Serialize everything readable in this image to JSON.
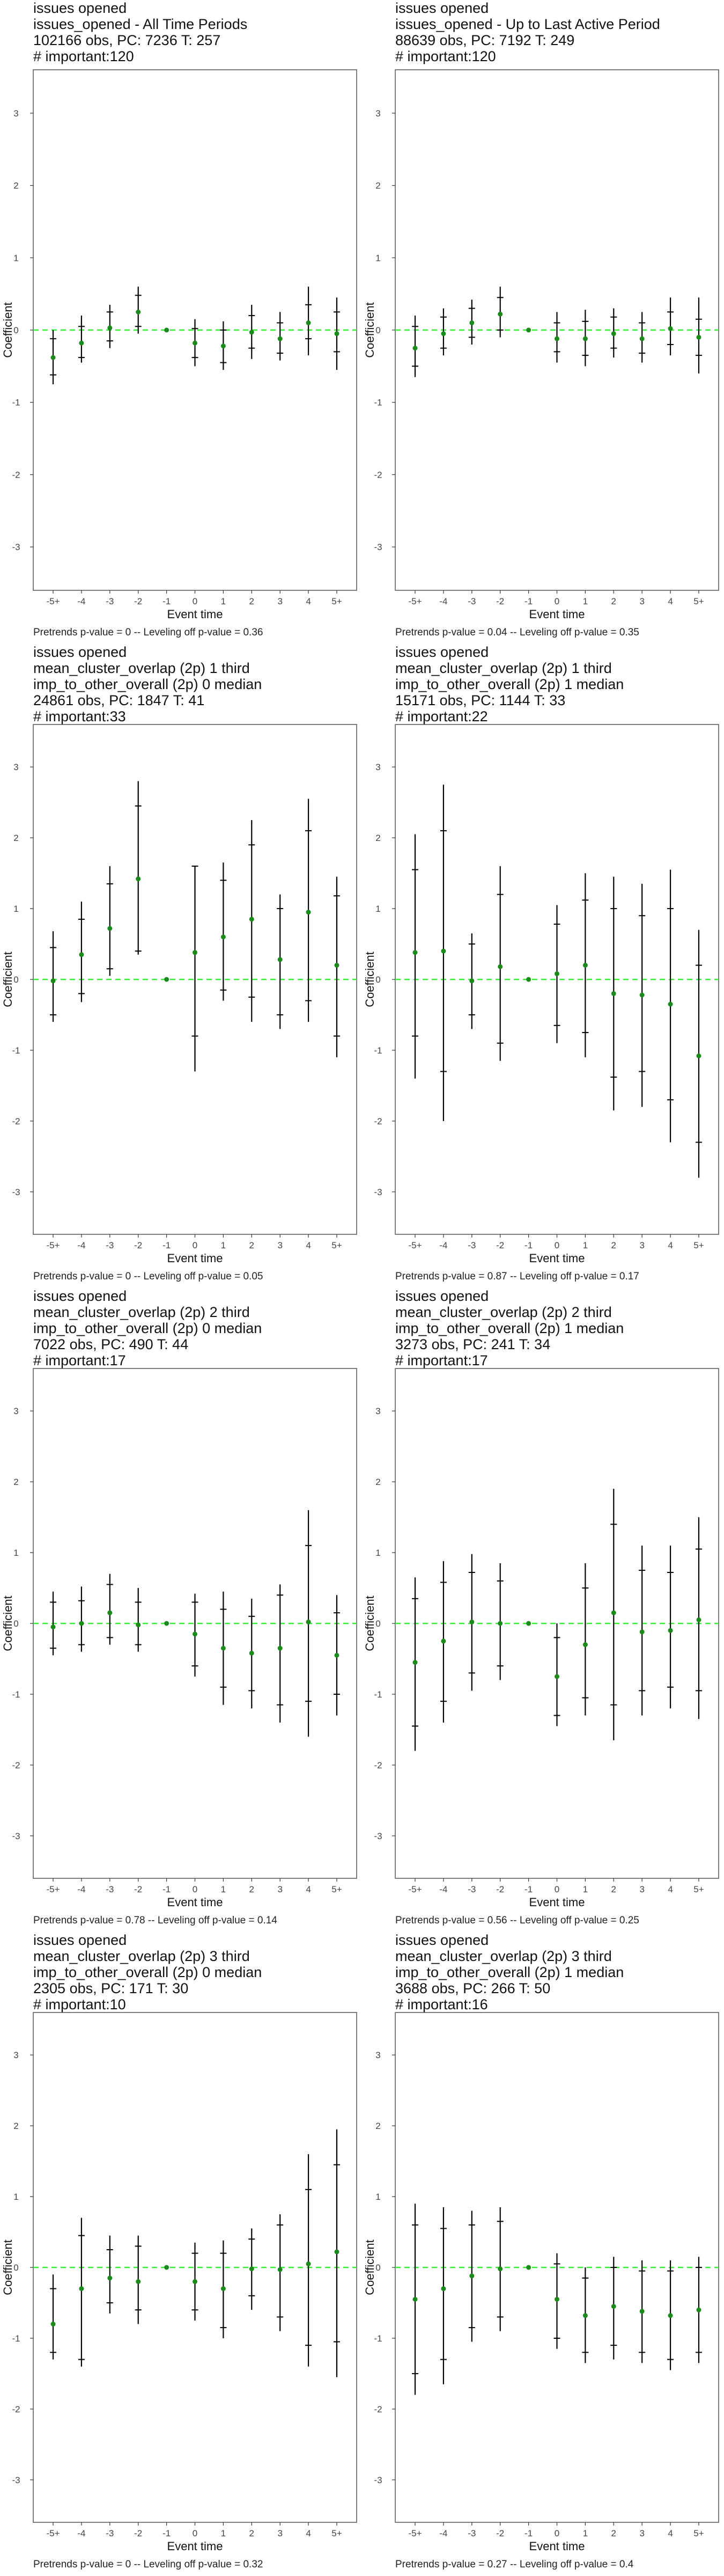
{
  "axis_text": {
    "ylabel": "Coefficient",
    "xlabel": "Event time"
  },
  "colors": {
    "point": "#1a8a1a",
    "refline": "#33ee33",
    "errorbar": "#000000",
    "frame": "#555555"
  },
  "chart_data": [
    {
      "type": "errorbar",
      "title_lines": [
        "issues opened",
        "issues_opened - All Time Periods",
        "102166 obs, PC: 7236 T: 257",
        "# important:120"
      ],
      "footer": "Pretrends p-value = 0 -- Leveling off p-value = 0.36",
      "xlabel": "Event time",
      "ylabel": "Coefficient",
      "categories": [
        "-5+",
        "-4",
        "-3",
        "-2",
        "-1",
        "0",
        "1",
        "2",
        "3",
        "4",
        "5+"
      ],
      "ylim": [
        -3.6,
        3.6
      ],
      "yticks": [
        -3,
        -2,
        -1,
        0,
        1,
        2,
        3
      ],
      "estimates": [
        -0.38,
        -0.18,
        0.03,
        0.25,
        0,
        -0.18,
        -0.22,
        -0.03,
        -0.12,
        0.1,
        -0.05
      ],
      "ci90": [
        [
          -0.62,
          -0.12
        ],
        [
          -0.38,
          0.05
        ],
        [
          -0.15,
          0.25
        ],
        [
          0.05,
          0.48
        ],
        null,
        [
          -0.38,
          0.02
        ],
        [
          -0.45,
          0.0
        ],
        [
          -0.25,
          0.2
        ],
        [
          -0.32,
          0.1
        ],
        [
          -0.12,
          0.35
        ],
        [
          -0.3,
          0.25
        ]
      ],
      "ci95": [
        [
          -0.75,
          0.0
        ],
        [
          -0.45,
          0.2
        ],
        [
          -0.25,
          0.35
        ],
        [
          -0.05,
          0.6
        ],
        null,
        [
          -0.5,
          0.15
        ],
        [
          -0.55,
          0.12
        ],
        [
          -0.4,
          0.35
        ],
        [
          -0.42,
          0.25
        ],
        [
          -0.35,
          0.6
        ],
        [
          -0.55,
          0.45
        ]
      ]
    },
    {
      "type": "errorbar",
      "title_lines": [
        "issues opened",
        "issues_opened - Up to Last Active Period",
        "88639 obs, PC: 7192 T: 249",
        "# important:120"
      ],
      "footer": "Pretrends p-value = 0.04 -- Leveling off p-value = 0.35",
      "xlabel": "Event time",
      "ylabel": "Coefficient",
      "categories": [
        "-5+",
        "-4",
        "-3",
        "-2",
        "-1",
        "0",
        "1",
        "2",
        "3",
        "4",
        "5+"
      ],
      "ylim": [
        -3.6,
        3.6
      ],
      "yticks": [
        -3,
        -2,
        -1,
        0,
        1,
        2,
        3
      ],
      "estimates": [
        -0.25,
        -0.05,
        0.1,
        0.22,
        0,
        -0.12,
        -0.12,
        -0.05,
        -0.12,
        0.02,
        -0.1
      ],
      "ci90": [
        [
          -0.5,
          0.05
        ],
        [
          -0.25,
          0.18
        ],
        [
          -0.1,
          0.3
        ],
        [
          0.0,
          0.45
        ],
        null,
        [
          -0.3,
          0.1
        ],
        [
          -0.35,
          0.12
        ],
        [
          -0.25,
          0.18
        ],
        [
          -0.32,
          0.1
        ],
        [
          -0.2,
          0.25
        ],
        [
          -0.35,
          0.15
        ]
      ],
      "ci95": [
        [
          -0.65,
          0.2
        ],
        [
          -0.35,
          0.3
        ],
        [
          -0.2,
          0.42
        ],
        [
          -0.1,
          0.6
        ],
        null,
        [
          -0.45,
          0.25
        ],
        [
          -0.5,
          0.28
        ],
        [
          -0.38,
          0.3
        ],
        [
          -0.45,
          0.25
        ],
        [
          -0.35,
          0.45
        ],
        [
          -0.6,
          0.45
        ]
      ]
    },
    {
      "type": "errorbar",
      "title_lines": [
        "issues opened",
        "mean_cluster_overlap (2p) 1 third",
        "imp_to_other_overall (2p) 0 median",
        "24861 obs, PC: 1847 T: 41",
        "# important:33"
      ],
      "footer": "Pretrends p-value = 0 -- Leveling off p-value = 0.05",
      "xlabel": "Event time",
      "ylabel": "Coefficient",
      "categories": [
        "-5+",
        "-4",
        "-3",
        "-2",
        "-1",
        "0",
        "1",
        "2",
        "3",
        "4",
        "5+"
      ],
      "ylim": [
        -3.6,
        3.6
      ],
      "yticks": [
        -3,
        -2,
        -1,
        0,
        1,
        2,
        3
      ],
      "estimates": [
        -0.02,
        0.35,
        0.72,
        1.42,
        0,
        0.38,
        0.6,
        0.85,
        0.28,
        0.95,
        0.2
      ],
      "ci90": [
        [
          -0.5,
          0.45
        ],
        [
          -0.2,
          0.85
        ],
        [
          0.15,
          1.35
        ],
        [
          0.4,
          2.45
        ],
        null,
        [
          -0.8,
          1.6
        ],
        [
          -0.15,
          1.4
        ],
        [
          -0.25,
          1.9
        ],
        [
          -0.5,
          1.0
        ],
        [
          -0.3,
          2.1
        ],
        [
          -0.8,
          1.18
        ]
      ],
      "ci95": [
        [
          -0.6,
          0.68
        ],
        [
          -0.32,
          1.1
        ],
        [
          0.05,
          1.6
        ],
        [
          0.35,
          2.8
        ],
        null,
        [
          -1.3,
          1.6
        ],
        [
          -0.3,
          1.65
        ],
        [
          -0.6,
          2.25
        ],
        [
          -0.7,
          1.2
        ],
        [
          -0.6,
          2.55
        ],
        [
          -1.1,
          1.45
        ]
      ]
    },
    {
      "type": "errorbar",
      "title_lines": [
        "issues opened",
        "mean_cluster_overlap (2p) 1 third",
        "imp_to_other_overall (2p) 1 median",
        "15171 obs, PC: 1144 T: 33",
        "# important:22"
      ],
      "footer": "Pretrends p-value = 0.87 -- Leveling off p-value = 0.17",
      "xlabel": "Event time",
      "ylabel": "Coefficient",
      "categories": [
        "-5+",
        "-4",
        "-3",
        "-2",
        "-1",
        "0",
        "1",
        "2",
        "3",
        "4",
        "5+"
      ],
      "ylim": [
        -3.6,
        3.6
      ],
      "yticks": [
        -3,
        -2,
        -1,
        0,
        1,
        2,
        3
      ],
      "estimates": [
        0.38,
        0.4,
        -0.02,
        0.18,
        0,
        0.08,
        0.2,
        -0.2,
        -0.22,
        -0.35,
        -1.08
      ],
      "ci90": [
        [
          -0.8,
          1.55
        ],
        [
          -1.3,
          2.1
        ],
        [
          -0.5,
          0.5
        ],
        [
          -0.9,
          1.2
        ],
        null,
        [
          -0.65,
          0.78
        ],
        [
          -0.75,
          1.12
        ],
        [
          -1.38,
          1.0
        ],
        [
          -1.3,
          0.9
        ],
        [
          -1.7,
          1.0
        ],
        [
          -2.3,
          0.2
        ]
      ],
      "ci95": [
        [
          -1.4,
          2.05
        ],
        [
          -2.0,
          2.75
        ],
        [
          -0.7,
          0.65
        ],
        [
          -1.15,
          1.6
        ],
        null,
        [
          -0.9,
          1.05
        ],
        [
          -1.1,
          1.5
        ],
        [
          -1.85,
          1.45
        ],
        [
          -1.8,
          1.35
        ],
        [
          -2.3,
          1.55
        ],
        [
          -2.8,
          0.7
        ]
      ]
    },
    {
      "type": "errorbar",
      "title_lines": [
        "issues opened",
        "mean_cluster_overlap (2p) 2 third",
        "imp_to_other_overall (2p) 0 median",
        "7022 obs, PC: 490 T: 44",
        "# important:17"
      ],
      "footer": "Pretrends p-value = 0.78 -- Leveling off p-value = 0.14",
      "xlabel": "Event time",
      "ylabel": "Coefficient",
      "categories": [
        "-5+",
        "-4",
        "-3",
        "-2",
        "-1",
        "0",
        "1",
        "2",
        "3",
        "4",
        "5+"
      ],
      "ylim": [
        -3.6,
        3.6
      ],
      "yticks": [
        -3,
        -2,
        -1,
        0,
        1,
        2,
        3
      ],
      "estimates": [
        -0.05,
        0.0,
        0.15,
        -0.02,
        0,
        -0.15,
        -0.35,
        -0.42,
        -0.35,
        0.02,
        -0.45
      ],
      "ci90": [
        [
          -0.35,
          0.3
        ],
        [
          -0.3,
          0.32
        ],
        [
          -0.2,
          0.55
        ],
        [
          -0.3,
          0.3
        ],
        null,
        [
          -0.6,
          0.3
        ],
        [
          -0.9,
          0.2
        ],
        [
          -0.95,
          0.1
        ],
        [
          -1.15,
          0.4
        ],
        [
          -1.1,
          1.1
        ],
        [
          -1.0,
          0.15
        ]
      ],
      "ci95": [
        [
          -0.45,
          0.45
        ],
        [
          -0.4,
          0.52
        ],
        [
          -0.3,
          0.7
        ],
        [
          -0.4,
          0.5
        ],
        null,
        [
          -0.75,
          0.42
        ],
        [
          -1.15,
          0.45
        ],
        [
          -1.2,
          0.35
        ],
        [
          -1.4,
          0.55
        ],
        [
          -1.6,
          1.6
        ],
        [
          -1.3,
          0.4
        ]
      ]
    },
    {
      "type": "errorbar",
      "title_lines": [
        "issues opened",
        "mean_cluster_overlap (2p) 2 third",
        "imp_to_other_overall (2p) 1 median",
        "3273 obs, PC: 241 T: 34",
        "# important:17"
      ],
      "footer": "Pretrends p-value = 0.56 -- Leveling off p-value = 0.25",
      "xlabel": "Event time",
      "ylabel": "Coefficient",
      "categories": [
        "-5+",
        "-4",
        "-3",
        "-2",
        "-1",
        "0",
        "1",
        "2",
        "3",
        "4",
        "5+"
      ],
      "ylim": [
        -3.6,
        3.6
      ],
      "yticks": [
        -3,
        -2,
        -1,
        0,
        1,
        2,
        3
      ],
      "estimates": [
        -0.55,
        -0.25,
        0.02,
        0.0,
        0,
        -0.75,
        -0.3,
        0.15,
        -0.12,
        -0.1,
        0.05
      ],
      "ci90": [
        [
          -1.45,
          0.35
        ],
        [
          -1.1,
          0.58
        ],
        [
          -0.7,
          0.72
        ],
        [
          -0.6,
          0.6
        ],
        null,
        [
          -1.3,
          -0.2
        ],
        [
          -1.05,
          0.5
        ],
        [
          -1.15,
          1.4
        ],
        [
          -0.95,
          0.75
        ],
        [
          -0.9,
          0.72
        ],
        [
          -0.95,
          1.05
        ]
      ],
      "ci95": [
        [
          -1.8,
          0.65
        ],
        [
          -1.4,
          0.88
        ],
        [
          -0.95,
          0.98
        ],
        [
          -0.8,
          0.85
        ],
        null,
        [
          -1.45,
          0.0
        ],
        [
          -1.3,
          0.85
        ],
        [
          -1.65,
          1.9
        ],
        [
          -1.3,
          1.1
        ],
        [
          -1.2,
          1.1
        ],
        [
          -1.35,
          1.5
        ]
      ]
    },
    {
      "type": "errorbar",
      "title_lines": [
        "issues opened",
        "mean_cluster_overlap (2p) 3 third",
        "imp_to_other_overall (2p) 0 median",
        "2305 obs, PC: 171 T: 30",
        "# important:10"
      ],
      "footer": "Pretrends p-value = 0 -- Leveling off p-value = 0.32",
      "xlabel": "Event time",
      "ylabel": "Coefficient",
      "categories": [
        "-5+",
        "-4",
        "-3",
        "-2",
        "-1",
        "0",
        "1",
        "2",
        "3",
        "4",
        "5+"
      ],
      "ylim": [
        -3.6,
        3.6
      ],
      "yticks": [
        -3,
        -2,
        -1,
        0,
        1,
        2,
        3
      ],
      "estimates": [
        -0.8,
        -0.3,
        -0.15,
        -0.2,
        0,
        -0.2,
        -0.3,
        -0.02,
        -0.03,
        0.05,
        0.22
      ],
      "ci90": [
        [
          -1.2,
          -0.3
        ],
        [
          -1.3,
          0.45
        ],
        [
          -0.5,
          0.25
        ],
        [
          -0.6,
          0.3
        ],
        null,
        [
          -0.6,
          0.2
        ],
        [
          -0.85,
          0.2
        ],
        [
          -0.4,
          0.4
        ],
        [
          -0.7,
          0.6
        ],
        [
          -1.1,
          1.1
        ],
        [
          -1.05,
          1.45
        ]
      ],
      "ci95": [
        [
          -1.3,
          -0.1
        ],
        [
          -1.4,
          0.7
        ],
        [
          -0.65,
          0.45
        ],
        [
          -0.8,
          0.45
        ],
        null,
        [
          -0.75,
          0.35
        ],
        [
          -1.0,
          0.38
        ],
        [
          -0.6,
          0.55
        ],
        [
          -0.9,
          0.75
        ],
        [
          -1.4,
          1.6
        ],
        [
          -1.55,
          1.95
        ]
      ]
    },
    {
      "type": "errorbar",
      "title_lines": [
        "issues opened",
        "mean_cluster_overlap (2p) 3 third",
        "imp_to_other_overall (2p) 1 median",
        "3688 obs, PC: 266 T: 50",
        "# important:16"
      ],
      "footer": "Pretrends p-value = 0.27 -- Leveling off p-value = 0.4",
      "xlabel": "Event time",
      "ylabel": "Coefficient",
      "categories": [
        "-5+",
        "-4",
        "-3",
        "-2",
        "-1",
        "0",
        "1",
        "2",
        "3",
        "4",
        "5+"
      ],
      "ylim": [
        -3.6,
        3.6
      ],
      "yticks": [
        -3,
        -2,
        -1,
        0,
        1,
        2,
        3
      ],
      "estimates": [
        -0.45,
        -0.3,
        -0.12,
        -0.02,
        0,
        -0.45,
        -0.68,
        -0.55,
        -0.62,
        -0.68,
        -0.6
      ],
      "ci90": [
        [
          -1.5,
          0.6
        ],
        [
          -1.3,
          0.55
        ],
        [
          -0.85,
          0.6
        ],
        [
          -0.7,
          0.65
        ],
        null,
        [
          -1.0,
          0.05
        ],
        [
          -1.2,
          -0.15
        ],
        [
          -1.1,
          0.0
        ],
        [
          -1.2,
          -0.05
        ],
        [
          -1.3,
          -0.05
        ],
        [
          -1.2,
          0.0
        ]
      ],
      "ci95": [
        [
          -1.8,
          0.9
        ],
        [
          -1.65,
          0.85
        ],
        [
          -1.05,
          0.8
        ],
        [
          -0.9,
          0.85
        ],
        null,
        [
          -1.15,
          0.2
        ],
        [
          -1.35,
          0.0
        ],
        [
          -1.3,
          0.15
        ],
        [
          -1.35,
          0.1
        ],
        [
          -1.45,
          0.1
        ],
        [
          -1.35,
          0.15
        ]
      ]
    }
  ]
}
